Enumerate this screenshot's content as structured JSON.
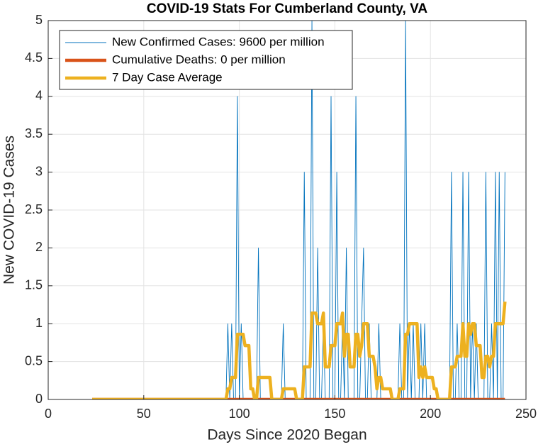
{
  "chart_data": {
    "type": "line",
    "title": "COVID-19 Stats For Cumberland County, VA",
    "xlabel": "Days Since 2020 Began",
    "ylabel": "New COVID-19 Cases",
    "xlim": [
      0,
      250
    ],
    "xticks": [
      0,
      50,
      100,
      150,
      200,
      250
    ],
    "ylim": [
      0,
      5
    ],
    "yticks": [
      0,
      0.5,
      1,
      1.5,
      2,
      2.5,
      3,
      3.5,
      4,
      4.5,
      5
    ],
    "grid": true,
    "legend": "northwest",
    "x": [
      23,
      24,
      25,
      26,
      27,
      28,
      29,
      30,
      31,
      32,
      33,
      34,
      35,
      36,
      37,
      38,
      39,
      40,
      41,
      42,
      43,
      44,
      45,
      46,
      47,
      48,
      49,
      50,
      51,
      52,
      53,
      54,
      55,
      56,
      57,
      58,
      59,
      60,
      61,
      62,
      63,
      64,
      65,
      66,
      67,
      68,
      69,
      70,
      71,
      72,
      73,
      74,
      75,
      76,
      77,
      78,
      79,
      80,
      81,
      82,
      83,
      84,
      85,
      86,
      87,
      88,
      89,
      90,
      91,
      92,
      93,
      94,
      95,
      96,
      97,
      98,
      99,
      100,
      101,
      102,
      103,
      104,
      105,
      106,
      107,
      108,
      109,
      110,
      111,
      112,
      113,
      114,
      115,
      116,
      117,
      118,
      119,
      120,
      121,
      122,
      123,
      124,
      125,
      126,
      127,
      128,
      129,
      130,
      131,
      132,
      133,
      134,
      135,
      136,
      137,
      138,
      139,
      140,
      141,
      142,
      143,
      144,
      145,
      146,
      147,
      148,
      149,
      150,
      151,
      152,
      153,
      154,
      155,
      156,
      157,
      158,
      159,
      160,
      161,
      162,
      163,
      164,
      165,
      166,
      167,
      168,
      169,
      170,
      171,
      172,
      173,
      174,
      175,
      176,
      177,
      178,
      179,
      180,
      181,
      182,
      183,
      184,
      185,
      186,
      187,
      188,
      189,
      190,
      191,
      192,
      193,
      194,
      195,
      196,
      197,
      198,
      199,
      200,
      201,
      202,
      203,
      204,
      205,
      206,
      207,
      208,
      209,
      210,
      211,
      212,
      213,
      214,
      215,
      216,
      217,
      218,
      219,
      220,
      221,
      222,
      223,
      224,
      225,
      226,
      227,
      228,
      229,
      230,
      231,
      232,
      233,
      234,
      235,
      236,
      237,
      238,
      239
    ],
    "series": [
      {
        "name": "New Confirmed Cases: 9600 per million",
        "color": "#0072bd",
        "values": [
          0,
          0,
          0,
          0,
          0,
          0,
          0,
          0,
          0,
          0,
          0,
          0,
          0,
          0,
          0,
          0,
          0,
          0,
          0,
          0,
          0,
          0,
          0,
          0,
          0,
          0,
          0,
          0,
          0,
          0,
          0,
          0,
          0,
          0,
          0,
          0,
          0,
          0,
          0,
          0,
          0,
          0,
          0,
          0,
          0,
          0,
          0,
          0,
          0,
          0,
          0,
          0,
          0,
          0,
          0,
          0,
          0,
          0,
          0,
          0,
          0,
          0,
          0,
          0,
          0,
          0,
          0,
          0,
          0,
          0,
          0,
          1,
          0,
          1,
          0,
          0,
          4,
          0,
          1,
          0,
          0,
          0,
          0,
          0,
          0,
          0,
          0,
          2,
          0,
          0,
          0,
          0,
          0,
          0,
          0,
          0,
          0,
          0,
          0,
          0,
          1,
          0,
          0,
          0,
          0,
          0,
          0,
          0,
          0,
          0,
          0,
          3,
          0,
          0,
          0,
          5,
          0,
          0,
          2,
          0,
          0,
          1,
          0,
          0,
          0,
          4,
          0,
          0,
          3,
          0,
          0,
          1,
          0,
          2,
          0,
          0,
          0,
          0,
          4,
          0,
          0,
          1,
          2,
          0,
          0,
          1,
          0,
          0,
          0,
          0,
          1,
          0,
          0,
          0,
          0,
          0,
          0,
          0,
          0,
          0,
          0,
          1,
          0,
          0,
          5,
          0,
          1,
          0,
          1,
          0,
          0,
          0,
          1,
          0,
          1,
          0,
          0,
          0,
          0,
          0,
          0,
          0,
          0,
          0,
          0,
          0,
          0,
          0,
          3,
          0,
          0,
          1,
          0,
          0,
          3,
          0,
          0,
          3,
          0,
          1,
          0,
          1,
          0,
          0,
          0,
          0,
          3,
          0,
          0,
          1,
          0,
          3,
          0,
          3,
          0,
          0,
          3
        ]
      },
      {
        "name": "Cumulative Deaths: 0 per million",
        "color": "#d95319",
        "values": [
          0,
          0,
          0,
          0,
          0,
          0,
          0,
          0,
          0,
          0,
          0,
          0,
          0,
          0,
          0,
          0,
          0,
          0,
          0,
          0,
          0,
          0,
          0,
          0,
          0,
          0,
          0,
          0,
          0,
          0,
          0,
          0,
          0,
          0,
          0,
          0,
          0,
          0,
          0,
          0,
          0,
          0,
          0,
          0,
          0,
          0,
          0,
          0,
          0,
          0,
          0,
          0,
          0,
          0,
          0,
          0,
          0,
          0,
          0,
          0,
          0,
          0,
          0,
          0,
          0,
          0,
          0,
          0,
          0,
          0,
          0,
          0,
          0,
          0,
          0,
          0,
          0,
          0,
          0,
          0,
          0,
          0,
          0,
          0,
          0,
          0,
          0,
          0,
          0,
          0,
          0,
          0,
          0,
          0,
          0,
          0,
          0,
          0,
          0,
          0,
          0,
          0,
          0,
          0,
          0,
          0,
          0,
          0,
          0,
          0,
          0,
          0,
          0,
          0,
          0,
          0,
          0,
          0,
          0,
          0,
          0,
          0,
          0,
          0,
          0,
          0,
          0,
          0,
          0,
          0,
          0,
          0,
          0,
          0,
          0,
          0,
          0,
          0,
          0,
          0,
          0,
          0,
          0,
          0,
          0,
          0,
          0,
          0,
          0,
          0,
          0,
          0,
          0,
          0,
          0,
          0,
          0,
          0,
          0,
          0,
          0,
          0,
          0,
          0,
          0,
          0,
          0,
          0,
          0,
          0,
          0,
          0,
          0,
          0,
          0,
          0,
          0,
          0,
          0,
          0,
          0,
          0,
          0,
          0,
          0,
          0,
          0,
          0,
          0,
          0,
          0,
          0,
          0,
          0,
          0,
          0,
          0,
          0,
          0,
          0,
          0,
          0,
          0,
          0,
          0,
          0,
          0,
          0,
          0,
          0,
          0,
          0,
          0,
          0,
          0,
          0,
          0
        ]
      },
      {
        "name": "7 Day Case Average",
        "color": "#edb120",
        "values": [
          0,
          0,
          0,
          0,
          0,
          0,
          0,
          0,
          0,
          0,
          0,
          0,
          0,
          0,
          0,
          0,
          0,
          0,
          0,
          0,
          0,
          0,
          0,
          0,
          0,
          0,
          0,
          0,
          0,
          0,
          0,
          0,
          0,
          0,
          0,
          0,
          0,
          0,
          0,
          0,
          0,
          0,
          0,
          0,
          0,
          0,
          0,
          0,
          0,
          0,
          0,
          0,
          0,
          0,
          0,
          0,
          0,
          0,
          0,
          0,
          0,
          0,
          0,
          0,
          0,
          0,
          0,
          0,
          0,
          0,
          0,
          0.14,
          0.14,
          0.29,
          0.29,
          0.29,
          0.86,
          0.86,
          0.86,
          0.86,
          0.71,
          0.71,
          0.71,
          0.14,
          0.14,
          0,
          0,
          0.29,
          0.29,
          0.29,
          0.29,
          0.29,
          0.29,
          0.29,
          0,
          0,
          0,
          0,
          0,
          0,
          0.14,
          0.14,
          0.14,
          0.14,
          0.14,
          0.14,
          0.14,
          0,
          0,
          0,
          0,
          0.43,
          0.43,
          0.43,
          0.43,
          1.14,
          1.14,
          1.14,
          1,
          1,
          1,
          1.14,
          0.43,
          0.43,
          0.43,
          0.71,
          0.71,
          0.71,
          1,
          1,
          1,
          1.14,
          0.57,
          0.86,
          0.86,
          0.43,
          0.43,
          0.43,
          0.86,
          0.86,
          0.57,
          0.71,
          1,
          1,
          1,
          0.57,
          0.57,
          0.57,
          0.43,
          0.14,
          0.29,
          0.29,
          0.14,
          0.14,
          0.14,
          0.14,
          0.14,
          0,
          0,
          0,
          0,
          0.14,
          0.14,
          0.14,
          0.86,
          0.86,
          1,
          1,
          1,
          1,
          1,
          0.29,
          0.43,
          0.29,
          0.43,
          0.29,
          0.29,
          0.29,
          0.29,
          0.14,
          0.14,
          0,
          0,
          0,
          0,
          0,
          0,
          0,
          0.43,
          0.43,
          0.43,
          0.57,
          0.57,
          0.57,
          1,
          0.57,
          0.57,
          1,
          0.86,
          1,
          1,
          0.71,
          0.71,
          0.71,
          0.29,
          0.29,
          0.57,
          0.57,
          0.43,
          0.57,
          0.57,
          1,
          1,
          1,
          1,
          1,
          1.29
        ]
      }
    ]
  }
}
